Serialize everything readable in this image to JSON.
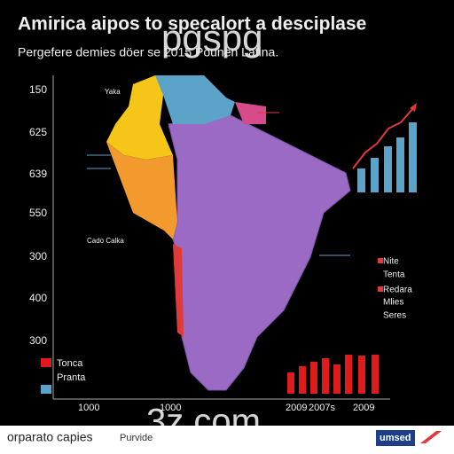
{
  "header": {
    "title": "Amirica aipos to specalort a desciplase",
    "subtitle": "Pergefere demies döer se 2015 Pounen Latina."
  },
  "watermarks": [
    "pgspg",
    "3z.com"
  ],
  "left_labels": [
    "150",
    "625",
    "639",
    "550",
    "300",
    "400",
    "300"
  ],
  "map_labels": [
    "Yaka",
    "Cado Calka"
  ],
  "right_legend": [
    "Nite",
    "Tenta",
    "Redara",
    "Mlies",
    "Seres"
  ],
  "left_legend": [
    "Tonca",
    "Pranta"
  ],
  "bottom_labels": [
    "1000",
    "1000",
    "2009",
    "2007s",
    "2009"
  ],
  "footer": {
    "left": "orparato capies",
    "middle": "Purvide",
    "right": "umsed"
  }
}
